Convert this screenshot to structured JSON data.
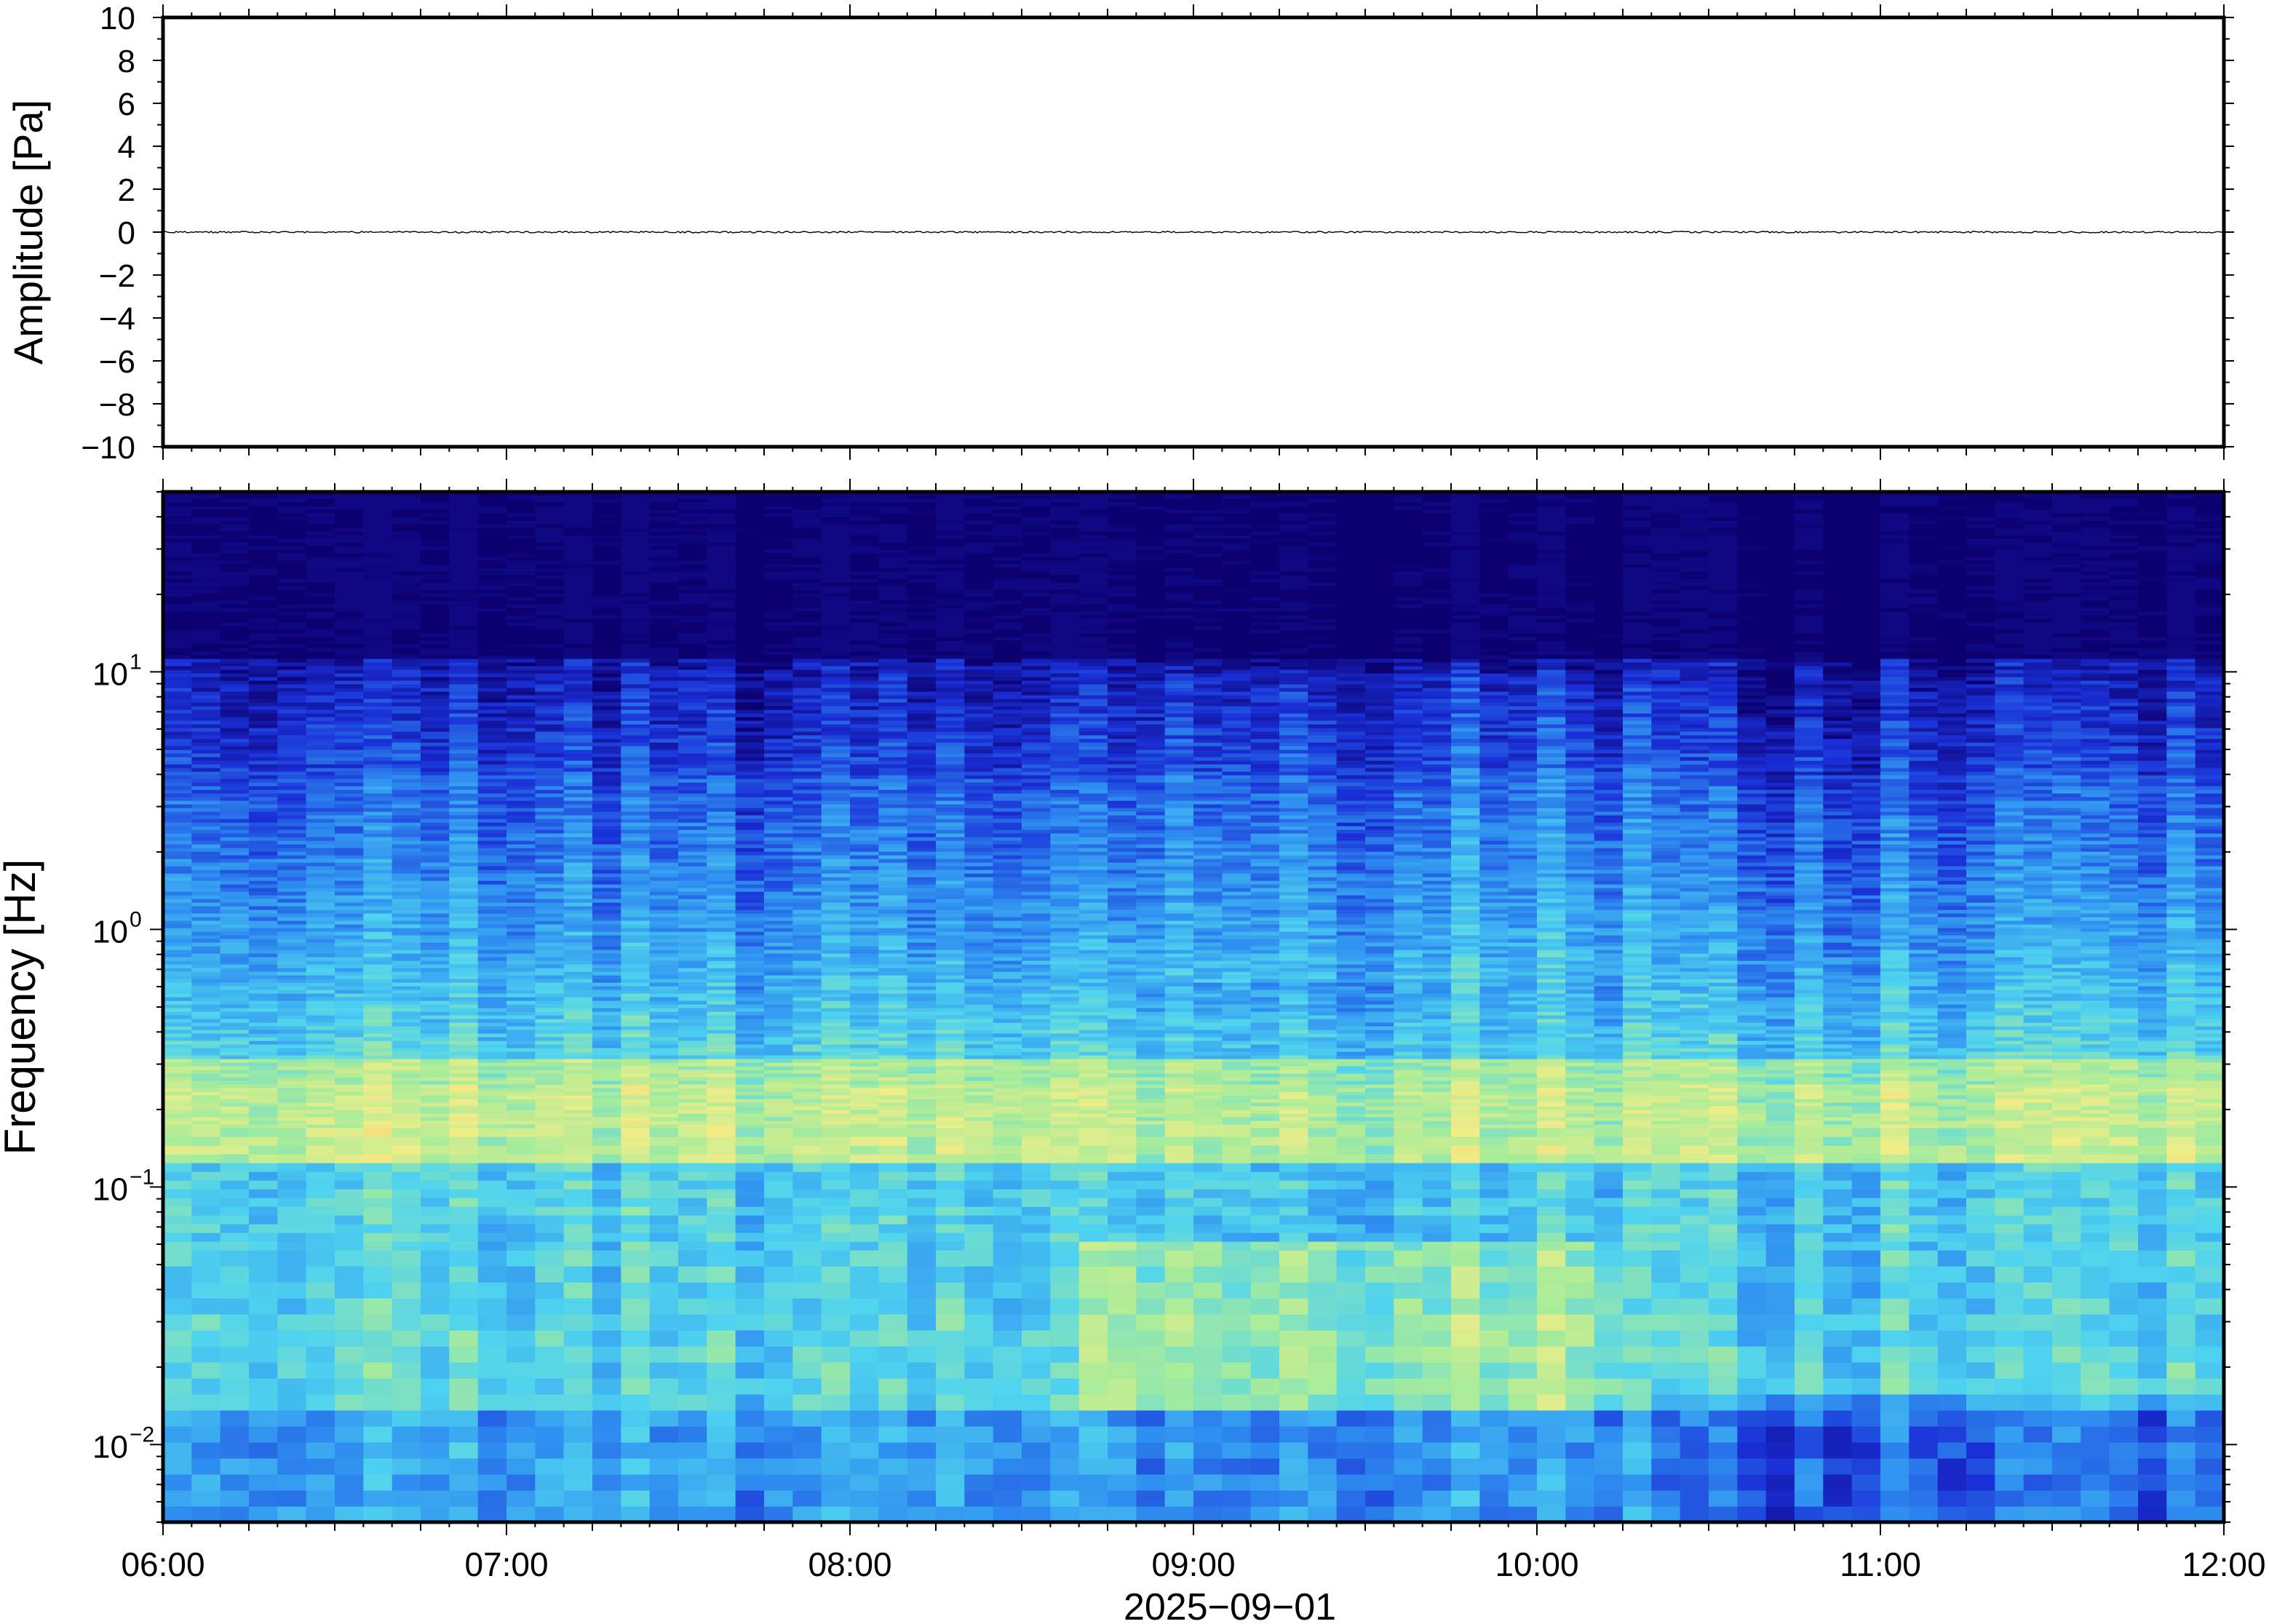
{
  "chart_data": [
    {
      "type": "line",
      "ylabel": "Amplitude [Pa]",
      "ylim": [
        -10,
        10
      ],
      "yticks": [
        10,
        8,
        6,
        4,
        2,
        0,
        -2,
        -4,
        -6,
        -8,
        -10
      ],
      "ytick_labels": [
        "10",
        "8",
        "6",
        "4",
        "2",
        "0",
        "−2",
        "−4",
        "−6",
        "−8",
        "−10"
      ],
      "xlim": [
        "06:00",
        "12:00"
      ],
      "series": [
        {
          "values_description_free": true,
          "y_constant": 0
        }
      ],
      "grid": false
    },
    {
      "type": "heatmap",
      "ylabel": "Frequency [Hz]",
      "yscale": "log",
      "ylim": [
        0.005,
        50
      ],
      "yticks": [
        0.01,
        0.1,
        1,
        10
      ],
      "ytick_labels": [
        {
          "base": "10",
          "exp": "−2"
        },
        {
          "base": "10",
          "exp": "−1"
        },
        {
          "base": "10",
          "exp": "0"
        },
        {
          "base": "10",
          "exp": "1"
        }
      ],
      "xlabel": "2025−09−01",
      "xlim": [
        "06:00",
        "12:00"
      ],
      "xtick_labels": [
        "06:00",
        "07:00",
        "08:00",
        "09:00",
        "10:00",
        "11:00",
        "12:00"
      ],
      "colormap": [
        "#0c0070",
        "#1a2fd6",
        "#2f8ff0",
        "#4fd3ef",
        "#a8ec9a",
        "#f0ed88",
        "#f7c060"
      ],
      "feature_notes": [
        "warm band near 0.2 Hz",
        "warm patches 09:00–10:00 around 0.02–0.05 Hz",
        "dark navy above ~10 Hz"
      ]
    }
  ]
}
